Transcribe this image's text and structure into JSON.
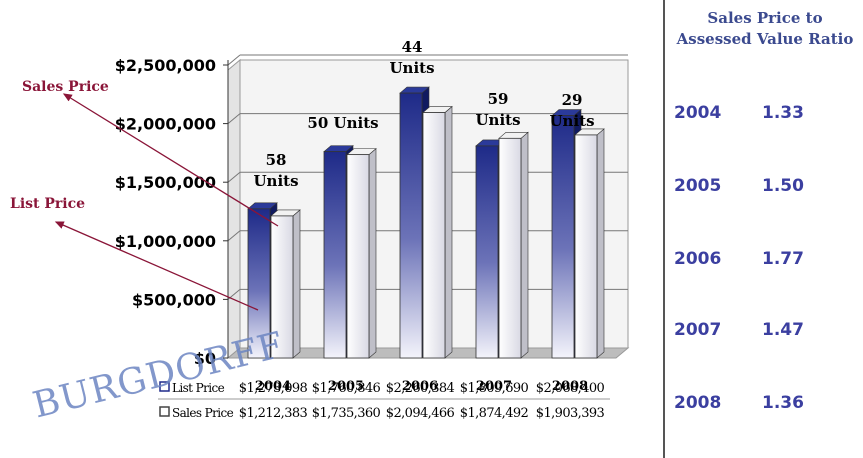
{
  "colors": {
    "list_price": "#1f2a8a",
    "sales_price": "#ffffff",
    "annotation": "#8a1538",
    "ratio_text": "#3b3fa0"
  },
  "chart_data": {
    "type": "bar",
    "categories": [
      "2004",
      "2005",
      "2006",
      "2007",
      "2008"
    ],
    "series": [
      {
        "name": "List Price",
        "values": [
          1273098,
          1760846,
          2260384,
          1809690,
          2068400
        ]
      },
      {
        "name": "Sales Price",
        "values": [
          1212383,
          1735360,
          2094466,
          1874492,
          1903393
        ]
      }
    ],
    "value_labels": {
      "List Price": [
        "$1,273,098",
        "$1,760,846",
        "$2,260,384",
        "$1,809,690",
        "$2,068,400"
      ],
      "Sales Price": [
        "$1,212,383",
        "$1,735,360",
        "$2,094,466",
        "$1,874,492",
        "$1,903,393"
      ]
    },
    "unit_labels": [
      [
        "58",
        "Units"
      ],
      [
        "50 Units"
      ],
      [
        "44",
        "Units"
      ],
      [
        "59",
        "Units"
      ],
      [
        "29",
        "Units"
      ]
    ],
    "ylim": [
      0,
      2500000
    ],
    "yticks": [
      0,
      500000,
      1000000,
      1500000,
      2000000,
      2500000
    ],
    "ytick_labels": [
      "$0",
      "$500,000",
      "$1,000,000",
      "$1,500,000",
      "$2,000,000",
      "$2,500,000"
    ],
    "grid": true,
    "legend": "data-table-below",
    "annotations": [
      "Sales Price",
      "List Price"
    ]
  },
  "ratio_panel": {
    "title_line1": "Sales Price to",
    "title_line2": "Assessed Value Ratio",
    "rows": [
      {
        "year": "2004",
        "ratio": "1.33"
      },
      {
        "year": "2005",
        "ratio": "1.50"
      },
      {
        "year": "2006",
        "ratio": "1.77"
      },
      {
        "year": "2007",
        "ratio": "1.47"
      },
      {
        "year": "2008",
        "ratio": "1.36"
      }
    ]
  },
  "watermark": {
    "logo_text": "BURGDORFF"
  }
}
